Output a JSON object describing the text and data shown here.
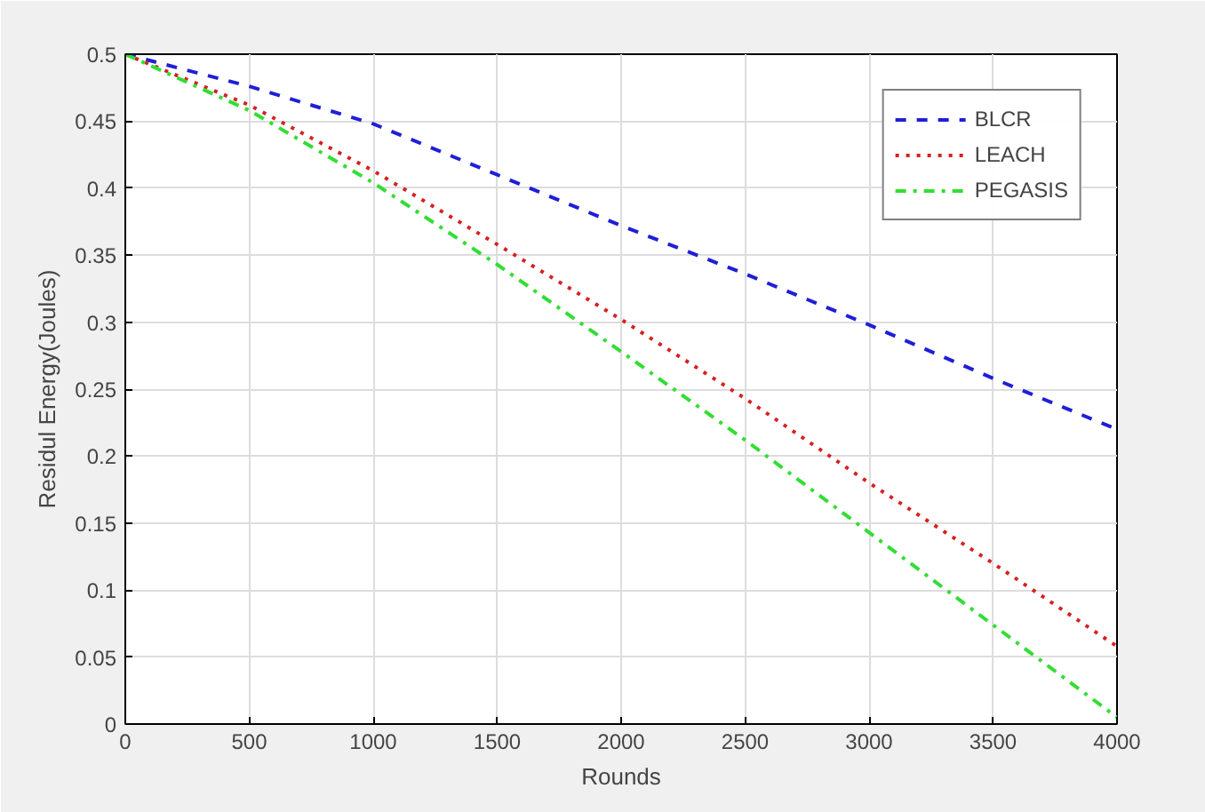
{
  "chart_data": {
    "type": "line",
    "xlabel": "Rounds",
    "ylabel": "Residul Energy(Joules)",
    "x": [
      0,
      500,
      1000,
      1500,
      2000,
      2500,
      3000,
      3500,
      4000
    ],
    "series": [
      {
        "name": "BLCR",
        "color": "#1f1fd6",
        "line_style": "dashed",
        "values": [
          0.5,
          0.476,
          0.448,
          0.41,
          0.372,
          0.336,
          0.298,
          0.258,
          0.22
        ]
      },
      {
        "name": "LEACH",
        "color": "#d62020",
        "line_style": "dotted",
        "values": [
          0.5,
          0.462,
          0.413,
          0.358,
          0.302,
          0.243,
          0.18,
          0.12,
          0.058
        ]
      },
      {
        "name": "PEGASIS",
        "color": "#33dd33",
        "line_style": "dashdot",
        "values": [
          0.5,
          0.458,
          0.404,
          0.343,
          0.278,
          0.212,
          0.143,
          0.074,
          0.005
        ]
      }
    ],
    "xlim": [
      0,
      4000
    ],
    "ylim": [
      0,
      0.5
    ],
    "xticks": [
      0,
      500,
      1000,
      1500,
      2000,
      2500,
      3000,
      3500,
      4000
    ],
    "yticks": [
      0,
      0.05,
      0.1,
      0.15,
      0.2,
      0.25,
      0.3,
      0.35,
      0.4,
      0.45,
      0.5
    ],
    "grid": true,
    "legend": "top right",
    "marker": "none"
  }
}
